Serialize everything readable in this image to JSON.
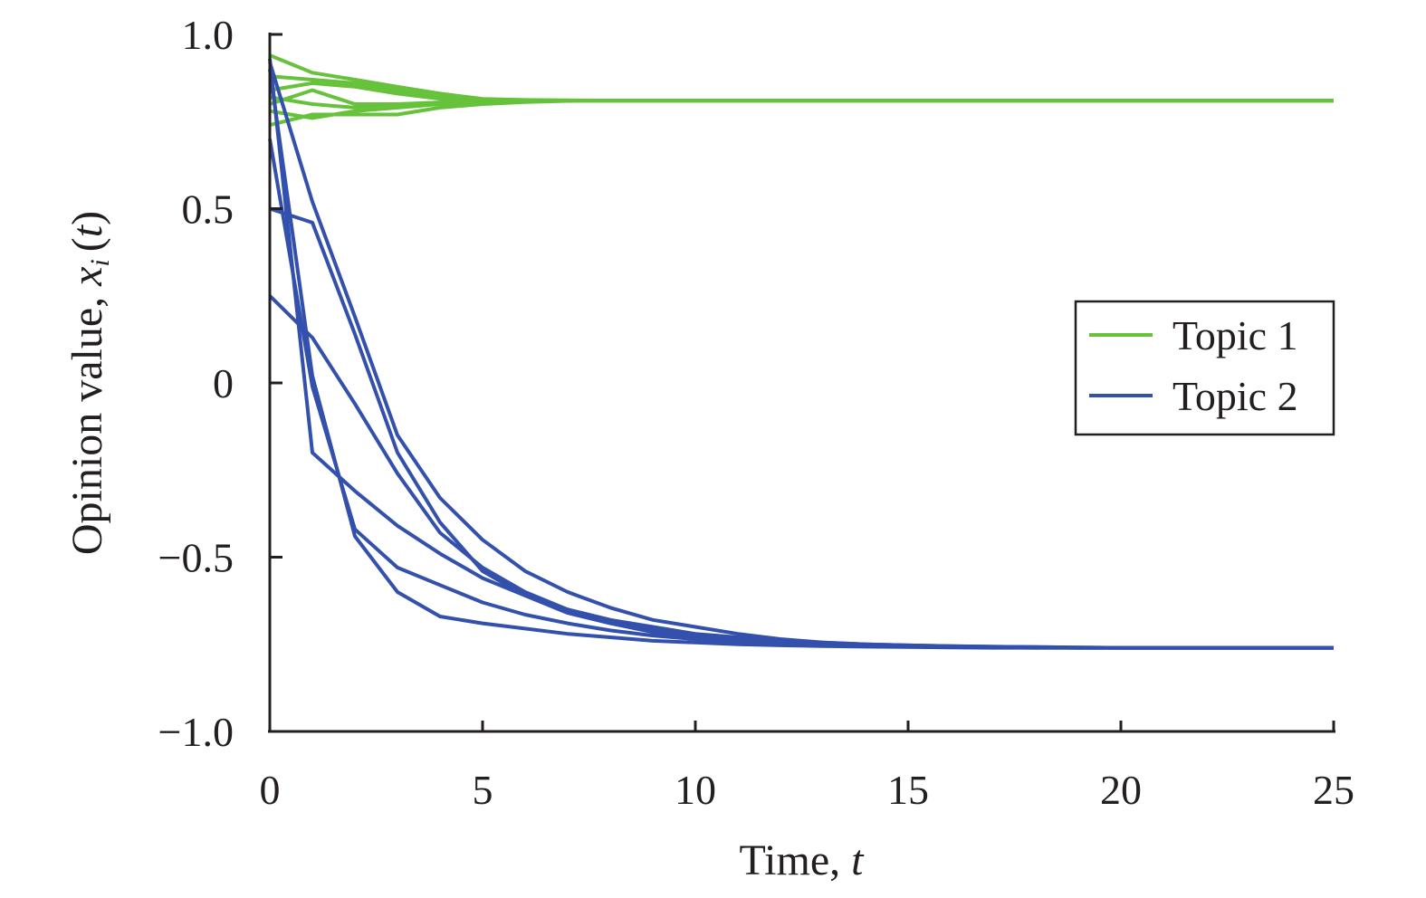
{
  "chart_data": {
    "type": "line",
    "xlabel": {
      "text": "Time, ",
      "var": "t"
    },
    "ylabel": {
      "text": "Opinion value, ",
      "var": "x",
      "sub": "i",
      "open": "(",
      "arg": "t",
      "close": ")"
    },
    "xlim": [
      0,
      25
    ],
    "ylim": [
      -1.0,
      1.0
    ],
    "xticks": [
      0,
      5,
      10,
      15,
      20,
      25
    ],
    "xtick_labels": [
      "0",
      "5",
      "10",
      "15",
      "20",
      "25"
    ],
    "yticks": [
      1.0,
      0.5,
      0,
      -0.5,
      -1.0
    ],
    "ytick_labels": [
      "1.0",
      "0.5",
      "0",
      "−0.5",
      "−1.0"
    ],
    "grid": false,
    "legend_position": "right",
    "x": [
      0,
      1,
      2,
      3,
      4,
      5,
      6,
      7,
      8,
      9,
      10,
      11,
      12,
      13,
      14,
      15,
      16,
      17,
      18,
      19,
      20,
      21,
      22,
      23,
      24,
      25
    ],
    "series": [
      {
        "name": "Topic 1",
        "color": "#66c23a",
        "lines": [
          [
            0.94,
            0.89,
            0.87,
            0.85,
            0.83,
            0.815,
            0.812,
            0.811,
            0.81,
            0.81,
            0.81,
            0.81,
            0.81,
            0.81,
            0.81,
            0.81,
            0.81,
            0.81,
            0.81,
            0.81,
            0.81,
            0.81,
            0.81,
            0.81,
            0.81,
            0.81
          ],
          [
            0.88,
            0.87,
            0.86,
            0.84,
            0.82,
            0.812,
            0.811,
            0.81,
            0.81,
            0.81,
            0.81,
            0.81,
            0.81,
            0.81,
            0.81,
            0.81,
            0.81,
            0.81,
            0.81,
            0.81,
            0.81,
            0.81,
            0.81,
            0.81,
            0.81,
            0.81
          ],
          [
            0.84,
            0.86,
            0.85,
            0.83,
            0.815,
            0.81,
            0.81,
            0.81,
            0.81,
            0.81,
            0.81,
            0.81,
            0.81,
            0.81,
            0.81,
            0.81,
            0.81,
            0.81,
            0.81,
            0.81,
            0.81,
            0.81,
            0.81,
            0.81,
            0.81,
            0.81
          ],
          [
            0.8,
            0.84,
            0.8,
            0.8,
            0.805,
            0.808,
            0.81,
            0.81,
            0.81,
            0.81,
            0.81,
            0.81,
            0.81,
            0.81,
            0.81,
            0.81,
            0.81,
            0.81,
            0.81,
            0.81,
            0.81,
            0.81,
            0.81,
            0.81,
            0.81,
            0.81
          ],
          [
            0.78,
            0.76,
            0.78,
            0.79,
            0.8,
            0.806,
            0.809,
            0.81,
            0.81,
            0.81,
            0.81,
            0.81,
            0.81,
            0.81,
            0.81,
            0.81,
            0.81,
            0.81,
            0.81,
            0.81,
            0.81,
            0.81,
            0.81,
            0.81,
            0.81,
            0.81
          ],
          [
            0.74,
            0.77,
            0.77,
            0.77,
            0.79,
            0.8,
            0.806,
            0.809,
            0.81,
            0.81,
            0.81,
            0.81,
            0.81,
            0.81,
            0.81,
            0.81,
            0.81,
            0.81,
            0.81,
            0.81,
            0.81,
            0.81,
            0.81,
            0.81,
            0.81,
            0.81
          ],
          [
            0.82,
            0.8,
            0.79,
            0.8,
            0.8,
            0.805,
            0.808,
            0.81,
            0.81,
            0.81,
            0.81,
            0.81,
            0.81,
            0.81,
            0.81,
            0.81,
            0.81,
            0.81,
            0.81,
            0.81,
            0.81,
            0.81,
            0.81,
            0.81,
            0.81,
            0.81
          ]
        ]
      },
      {
        "name": "Topic 2",
        "color": "#3350ad",
        "lines": [
          [
            0.93,
            -0.2,
            -0.31,
            -0.41,
            -0.49,
            -0.56,
            -0.61,
            -0.65,
            -0.68,
            -0.7,
            -0.72,
            -0.73,
            -0.74,
            -0.745,
            -0.75,
            -0.753,
            -0.755,
            -0.757,
            -0.758,
            -0.759,
            -0.76,
            -0.76,
            -0.76,
            -0.76,
            -0.76,
            -0.76
          ],
          [
            0.25,
            0.13,
            -0.06,
            -0.26,
            -0.43,
            -0.53,
            -0.6,
            -0.65,
            -0.68,
            -0.71,
            -0.725,
            -0.735,
            -0.745,
            -0.75,
            -0.753,
            -0.755,
            -0.757,
            -0.758,
            -0.759,
            -0.76,
            -0.76,
            -0.76,
            -0.76,
            -0.76,
            -0.76,
            -0.76
          ],
          [
            0.5,
            0.46,
            0.14,
            -0.2,
            -0.4,
            -0.54,
            -0.61,
            -0.66,
            -0.69,
            -0.715,
            -0.73,
            -0.74,
            -0.745,
            -0.75,
            -0.753,
            -0.755,
            -0.757,
            -0.758,
            -0.759,
            -0.76,
            -0.76,
            -0.76,
            -0.76,
            -0.76,
            -0.76,
            -0.76
          ],
          [
            0.92,
            0.52,
            0.19,
            -0.15,
            -0.33,
            -0.45,
            -0.54,
            -0.6,
            -0.645,
            -0.68,
            -0.7,
            -0.72,
            -0.735,
            -0.745,
            -0.75,
            -0.753,
            -0.755,
            -0.757,
            -0.758,
            -0.759,
            -0.76,
            -0.76,
            -0.76,
            -0.76,
            -0.76,
            -0.76
          ],
          [
            0.7,
            -0.01,
            -0.42,
            -0.53,
            -0.58,
            -0.63,
            -0.665,
            -0.69,
            -0.71,
            -0.725,
            -0.735,
            -0.745,
            -0.75,
            -0.753,
            -0.755,
            -0.757,
            -0.758,
            -0.759,
            -0.76,
            -0.76,
            -0.76,
            -0.76,
            -0.76,
            -0.76,
            -0.76,
            -0.76
          ],
          [
            0.9,
            0.02,
            -0.44,
            -0.6,
            -0.67,
            -0.69,
            -0.705,
            -0.72,
            -0.73,
            -0.74,
            -0.745,
            -0.75,
            -0.753,
            -0.755,
            -0.757,
            -0.758,
            -0.759,
            -0.76,
            -0.76,
            -0.76,
            -0.76,
            -0.76,
            -0.76,
            -0.76,
            -0.76,
            -0.76
          ]
        ]
      }
    ]
  }
}
